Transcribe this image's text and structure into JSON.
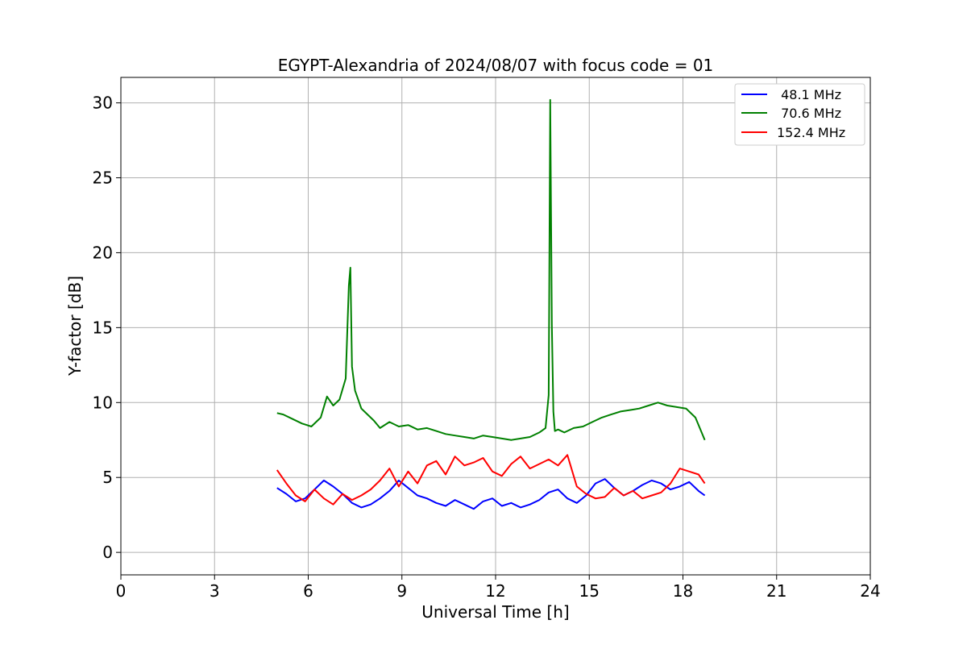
{
  "chart_data": {
    "type": "line",
    "title": "EGYPT-Alexandria of 2024/08/07 with focus code = 01",
    "xlabel": "Universal Time [h]",
    "ylabel": "Y-factor [dB]",
    "xlim": [
      0,
      24
    ],
    "ylim": [
      -1.5,
      31.7
    ],
    "xticks": [
      0,
      3,
      6,
      9,
      12,
      15,
      18,
      21,
      24
    ],
    "yticks": [
      0,
      5,
      10,
      15,
      20,
      25,
      30
    ],
    "grid": true,
    "legend_position": "top-right",
    "series": [
      {
        "name": " 48.1 MHz",
        "color": "#0000ff",
        "x": [
          5.0,
          5.3,
          5.6,
          5.9,
          6.2,
          6.5,
          6.8,
          7.1,
          7.4,
          7.7,
          8.0,
          8.3,
          8.6,
          8.9,
          9.2,
          9.5,
          9.8,
          10.1,
          10.4,
          10.7,
          11.0,
          11.3,
          11.6,
          11.9,
          12.2,
          12.5,
          12.8,
          13.1,
          13.4,
          13.7,
          14.0,
          14.3,
          14.6,
          14.9,
          15.2,
          15.5,
          15.8,
          16.1,
          16.4,
          16.7,
          17.0,
          17.3,
          17.6,
          17.9,
          18.2,
          18.5,
          18.7
        ],
        "y": [
          4.3,
          3.9,
          3.4,
          3.6,
          4.2,
          4.8,
          4.4,
          3.9,
          3.3,
          3.0,
          3.2,
          3.6,
          4.1,
          4.8,
          4.3,
          3.8,
          3.6,
          3.3,
          3.1,
          3.5,
          3.2,
          2.9,
          3.4,
          3.6,
          3.1,
          3.3,
          3.0,
          3.2,
          3.5,
          4.0,
          4.2,
          3.6,
          3.3,
          3.8,
          4.6,
          4.9,
          4.3,
          3.8,
          4.1,
          4.5,
          4.8,
          4.6,
          4.2,
          4.4,
          4.7,
          4.1,
          3.8
        ]
      },
      {
        "name": " 70.6 MHz",
        "color": "#008000",
        "x": [
          5.0,
          5.2,
          5.5,
          5.8,
          6.1,
          6.4,
          6.6,
          6.8,
          7.0,
          7.2,
          7.3,
          7.35,
          7.4,
          7.5,
          7.7,
          7.9,
          8.1,
          8.3,
          8.6,
          8.9,
          9.2,
          9.5,
          9.8,
          10.1,
          10.4,
          10.7,
          11.0,
          11.3,
          11.6,
          11.9,
          12.2,
          12.5,
          12.8,
          13.1,
          13.4,
          13.6,
          13.7,
          13.75,
          13.8,
          13.85,
          13.9,
          14.0,
          14.2,
          14.5,
          14.8,
          15.1,
          15.4,
          15.7,
          16.0,
          16.3,
          16.6,
          16.9,
          17.2,
          17.5,
          17.8,
          18.1,
          18.4,
          18.7
        ],
        "y": [
          9.3,
          9.2,
          8.9,
          8.6,
          8.4,
          9.0,
          10.4,
          9.8,
          10.2,
          11.6,
          17.8,
          19.0,
          12.4,
          10.8,
          9.6,
          9.2,
          8.8,
          8.3,
          8.7,
          8.4,
          8.5,
          8.2,
          8.3,
          8.1,
          7.9,
          7.8,
          7.7,
          7.6,
          7.8,
          7.7,
          7.6,
          7.5,
          7.6,
          7.7,
          8.0,
          8.3,
          10.5,
          30.2,
          15.2,
          9.4,
          8.1,
          8.2,
          8.0,
          8.3,
          8.4,
          8.7,
          9.0,
          9.2,
          9.4,
          9.5,
          9.6,
          9.8,
          10.0,
          9.8,
          9.7,
          9.6,
          9.0,
          7.5
        ]
      },
      {
        "name": "152.4 MHz",
        "color": "#ff0000",
        "x": [
          5.0,
          5.3,
          5.6,
          5.9,
          6.2,
          6.5,
          6.8,
          7.1,
          7.4,
          7.7,
          8.0,
          8.3,
          8.6,
          8.9,
          9.2,
          9.5,
          9.8,
          10.1,
          10.4,
          10.7,
          11.0,
          11.3,
          11.6,
          11.9,
          12.2,
          12.5,
          12.8,
          13.1,
          13.4,
          13.7,
          14.0,
          14.3,
          14.6,
          14.9,
          15.2,
          15.5,
          15.8,
          16.1,
          16.4,
          16.7,
          17.0,
          17.3,
          17.6,
          17.9,
          18.2,
          18.5,
          18.7
        ],
        "y": [
          5.5,
          4.6,
          3.8,
          3.4,
          4.2,
          3.6,
          3.2,
          3.9,
          3.5,
          3.8,
          4.2,
          4.8,
          5.6,
          4.4,
          5.4,
          4.6,
          5.8,
          6.1,
          5.2,
          6.4,
          5.8,
          6.0,
          6.3,
          5.4,
          5.1,
          5.9,
          6.4,
          5.6,
          5.9,
          6.2,
          5.8,
          6.5,
          4.4,
          3.9,
          3.6,
          3.7,
          4.3,
          3.8,
          4.1,
          3.6,
          3.8,
          4.0,
          4.6,
          5.6,
          5.4,
          5.2,
          4.6
        ]
      }
    ]
  }
}
